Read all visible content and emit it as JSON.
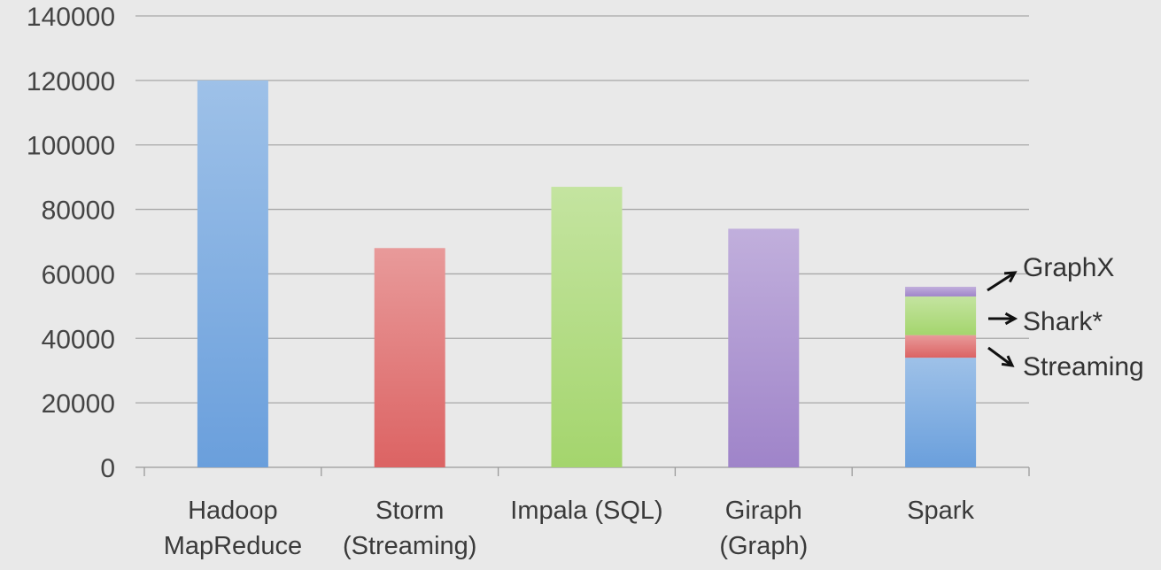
{
  "chart_data": {
    "type": "bar",
    "categories": [
      [
        "Hadoop",
        "MapReduce"
      ],
      [
        "Storm",
        "(Streaming)"
      ],
      [
        "Impala (SQL)"
      ],
      [
        "Giraph",
        "(Graph)"
      ],
      [
        "Spark"
      ]
    ],
    "values": [
      120000,
      68000,
      87000,
      74000,
      null
    ],
    "stacked_bar": {
      "category_index": 4,
      "segments": [
        {
          "value": 34000,
          "color": "#6a9fdc"
        },
        {
          "value": 7000,
          "color": "#dc6363"
        },
        {
          "value": 12000,
          "color": "#a4d56d"
        },
        {
          "value": 3000,
          "color": "#9f84c9"
        }
      ],
      "annotations": [
        "GraphX",
        "Shark*",
        "Streaming"
      ]
    },
    "bar_colors": [
      "#6a9fdc",
      "#dc6363",
      "#a4d56d",
      "#9f84c9"
    ],
    "yticks": [
      0,
      20000,
      40000,
      60000,
      80000,
      100000,
      120000,
      140000
    ],
    "ylim": [
      0,
      140000
    ],
    "grid": true
  }
}
